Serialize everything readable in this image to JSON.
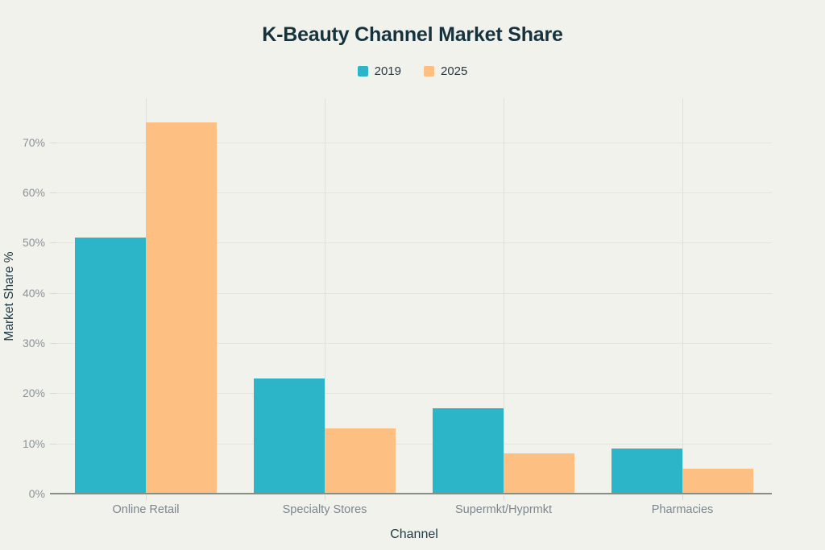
{
  "title": "K-Beauty Channel Market Share",
  "chart_data": {
    "type": "bar",
    "title": "K-Beauty Channel Market Share",
    "xlabel": "Channel",
    "ylabel": "Market Share %",
    "categories": [
      "Online Retail",
      "Specialty Stores",
      "Supermkt/Hyprmkt",
      "Pharmacies"
    ],
    "series": [
      {
        "name": "2019",
        "color": "#2cb5c8",
        "values": [
          51,
          23,
          17,
          9
        ]
      },
      {
        "name": "2025",
        "color": "#fdbf82",
        "values": [
          74,
          13,
          8,
          5
        ]
      }
    ],
    "ylim": [
      0,
      78.8
    ],
    "yticks": [
      0,
      10,
      20,
      30,
      40,
      50,
      60,
      70
    ],
    "ytick_suffix": "%",
    "grid": true,
    "legend_position": "top-center"
  },
  "colors": {
    "background": "#f1f2ec",
    "title_text": "#16323d",
    "axis_title_text": "#1d3b46",
    "legend_text": "#2a3a40",
    "tick_text": "#8b9298",
    "category_text": "#7d868e",
    "gridline_h": "#e4e6de",
    "gridline_v": "#dee1d8",
    "tick_mark": "#d7dad1",
    "axis_line": "#878e84"
  }
}
